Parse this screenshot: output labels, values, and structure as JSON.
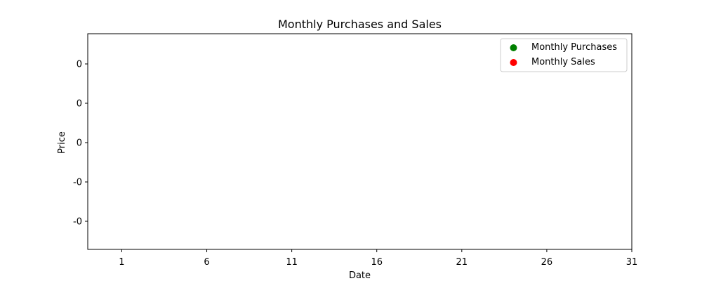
{
  "chart_data": {
    "type": "scatter",
    "title": "Monthly Purchases and Sales",
    "xlabel": "Date",
    "ylabel": "Price",
    "x_ticks": [
      "1",
      "6",
      "11",
      "16",
      "21",
      "26",
      "31"
    ],
    "y_ticks": [
      "0",
      "0",
      "0",
      "-0",
      "-0"
    ],
    "xlim": [
      -1,
      31
    ],
    "ylim": [
      0,
      1
    ],
    "grid": false,
    "legend_position": "top-right",
    "series": [
      {
        "name": "Monthly Purchases",
        "color": "#008000",
        "x": [],
        "y": []
      },
      {
        "name": "Monthly Sales",
        "color": "#ff0000",
        "x": [],
        "y": []
      }
    ]
  }
}
